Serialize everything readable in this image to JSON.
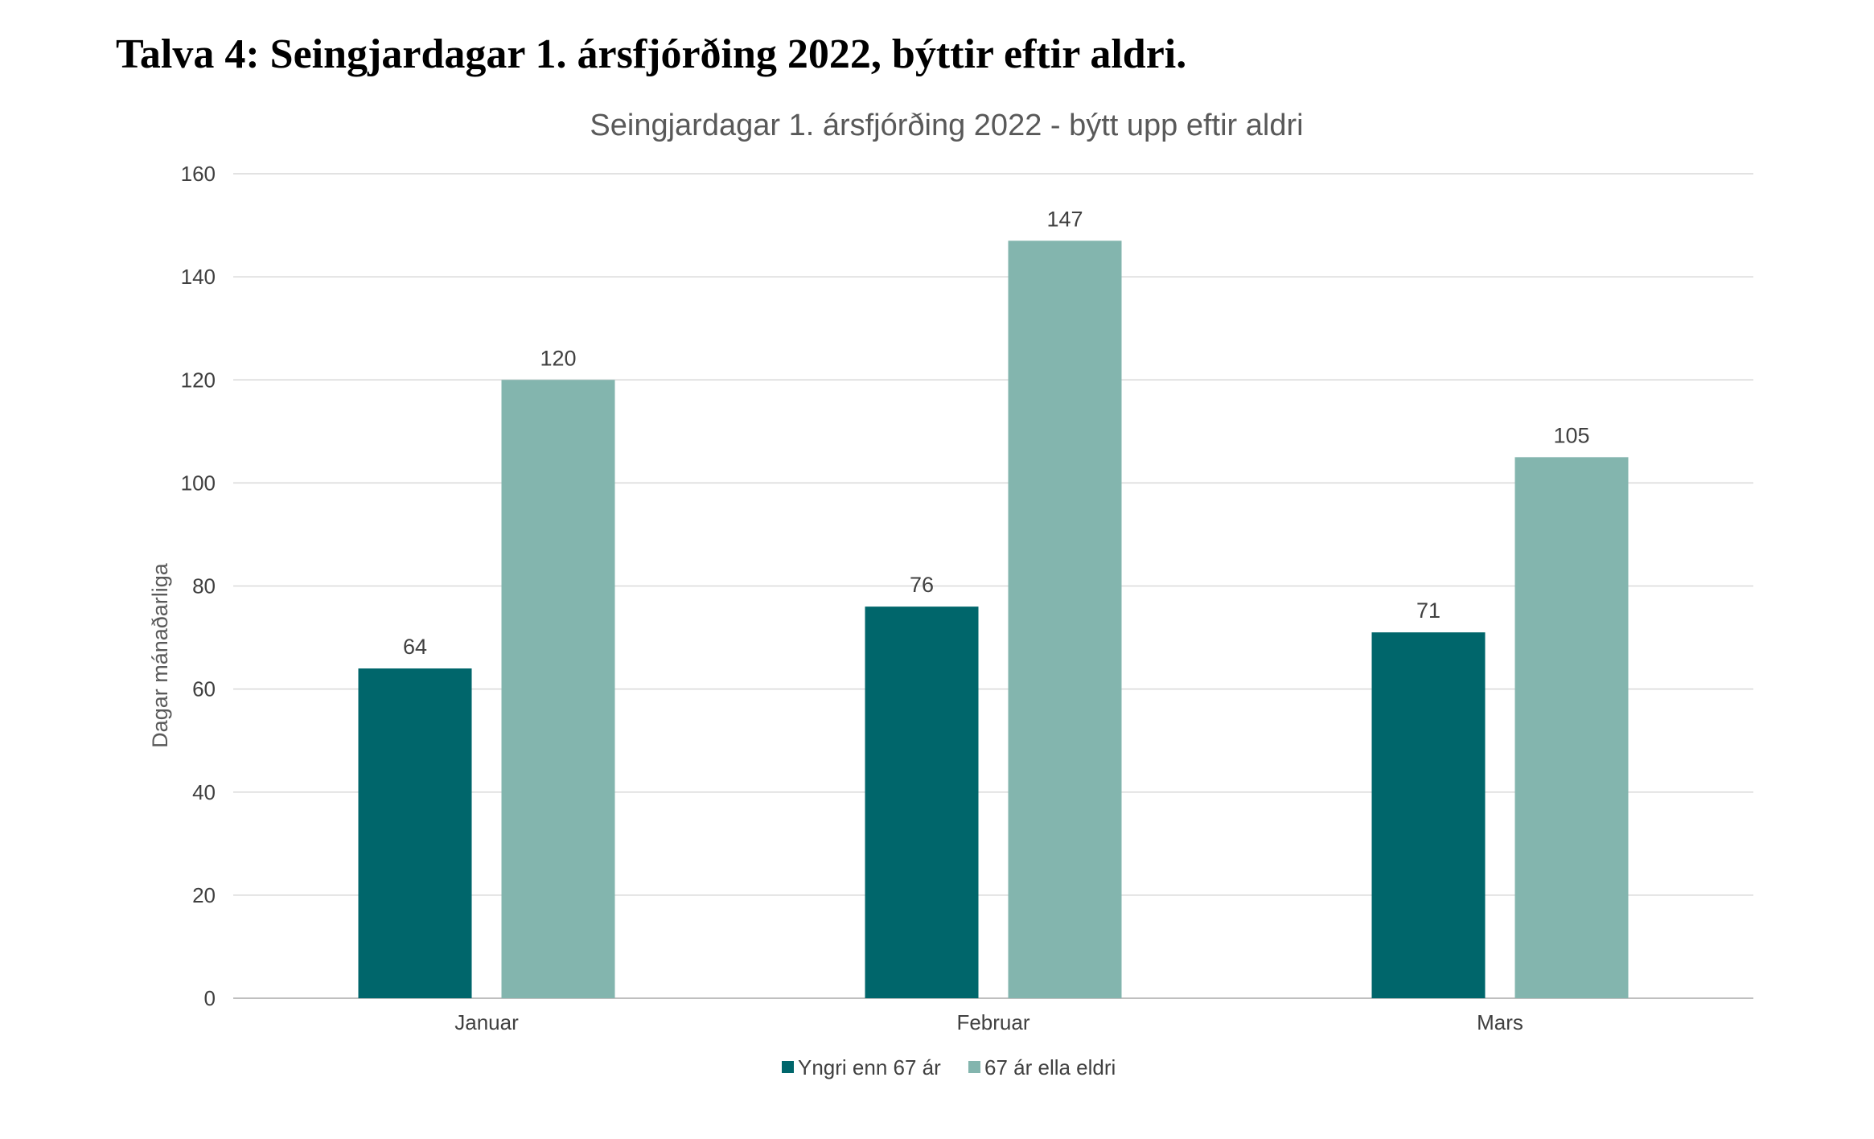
{
  "document": {
    "heading": "Talva 4: Seingjardagar 1. ársfjórðing 2022, býttir eftir aldri."
  },
  "chart_data": {
    "type": "bar",
    "title": "Seingjardagar 1. ársfjórðing 2022 - býtt upp eftir aldri",
    "xlabel": "",
    "ylabel": "Dagar mánaðarliga",
    "categories": [
      "Januar",
      "Februar",
      "Mars"
    ],
    "series": [
      {
        "name": "Yngri enn 67 ár",
        "values": [
          64,
          76,
          71
        ],
        "color": "#00666b"
      },
      {
        "name": "67 ár ella eldri",
        "values": [
          120,
          147,
          105
        ],
        "color": "#83b5ae"
      }
    ],
    "ylim": [
      0,
      160
    ],
    "yticks": [
      0,
      20,
      40,
      60,
      80,
      100,
      120,
      140,
      160
    ],
    "grid": true,
    "data_labels": true,
    "legend_position": "bottom"
  }
}
